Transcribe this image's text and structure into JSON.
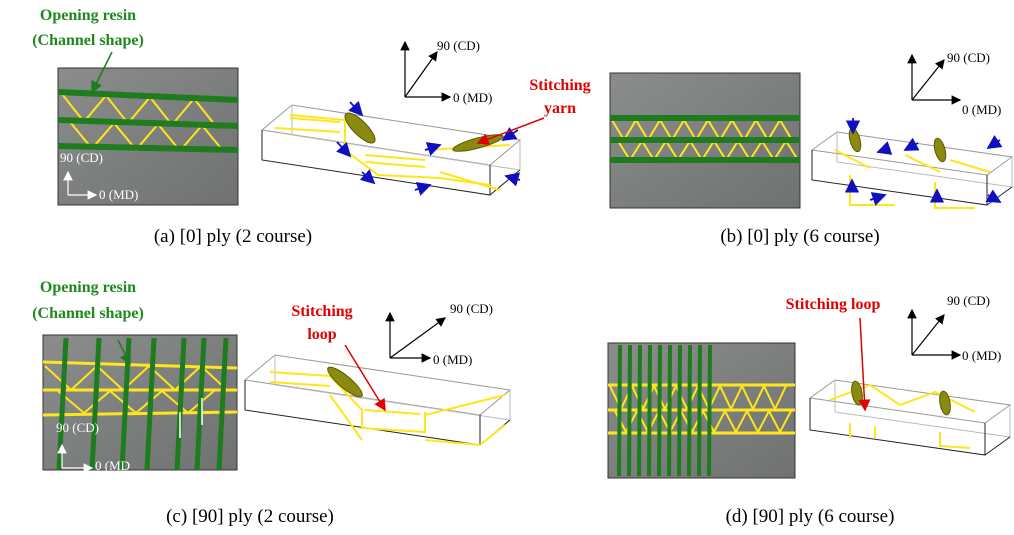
{
  "panels": [
    {
      "caption": "(a) [0] ply (2 course)",
      "annotation": [
        "Opening resin",
        "(Channel shape)"
      ],
      "callout": [
        "Stitching",
        "yarn"
      ],
      "photo_axes": [
        "90 (CD)",
        "0 (MD)"
      ],
      "axes": [
        "90 (CD)",
        "0 (MD)"
      ]
    },
    {
      "caption": "(b) [0] ply (6 course)",
      "axes": [
        "90 (CD)",
        "0 (MD)"
      ]
    },
    {
      "caption": "(c) [90] ply (2 course)",
      "annotation": [
        "Opening resin",
        "(Channel shape)"
      ],
      "callout": [
        "Stitching",
        "loop"
      ],
      "photo_axes": [
        "90 (CD)",
        "0 (MD"
      ],
      "axes": [
        "90 (CD)",
        "0 (MD)"
      ]
    },
    {
      "caption": "(d) [90] ply (6 course)",
      "callout": [
        "Stitching loop"
      ],
      "axes": [
        "90 (CD)",
        "0 (MD)"
      ]
    }
  ]
}
